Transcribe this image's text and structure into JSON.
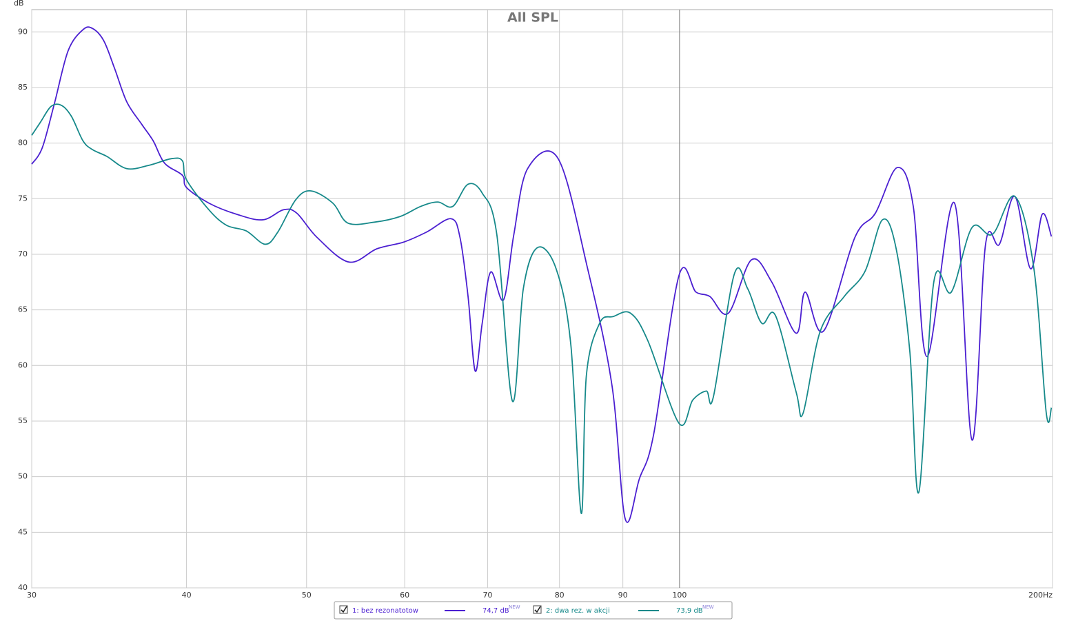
{
  "chart_data": {
    "type": "line",
    "title": "All SPL",
    "y_label": "dB",
    "xscale": "log",
    "grid": true,
    "xlim": [
      30,
      200
    ],
    "ylim": [
      40,
      92
    ],
    "xticks": [
      30,
      40,
      50,
      60,
      70,
      80,
      90,
      100,
      {
        "value": 200,
        "label": "200Hz"
      }
    ],
    "yticks": [
      40,
      45,
      50,
      55,
      60,
      65,
      70,
      75,
      80,
      85,
      90
    ],
    "series": [
      {
        "name": "1: bez rezonatotow",
        "color": "#4b1fd1",
        "level": "74,7 dB",
        "level_tag": "NEW",
        "x": [
          30,
          30.6,
          31.3,
          32.1,
          33.0,
          33.6,
          34.3,
          35.0,
          35.8,
          36.8,
          37.6,
          38.4,
          39.7,
          40.0,
          41.7,
          43.9,
          46.1,
          47.9,
          49.1,
          51.0,
          54.1,
          57.0,
          59.9,
          62.5,
          65.4,
          66.5,
          67.5,
          68.4,
          69.3,
          70.4,
          72.1,
          73.5,
          75.4,
          79.8,
          84.3,
          88.2,
          90.4,
          92.8,
          95.3,
          99.9,
          103.1,
          105.8,
          109.5,
          114.3,
          118.7,
          124.2,
          126.3,
          130.7,
          138.5,
          143.9,
          149.9,
          154.4,
          158.4,
          166.7,
          172.2,
          176.6,
          181.2,
          186.5,
          192.0,
          196.2,
          199.6
        ],
        "values": [
          78.1,
          79.6,
          83.6,
          88.3,
          90.2,
          90.3,
          89.2,
          86.7,
          83.7,
          81.7,
          80.2,
          78.2,
          77.1,
          76.0,
          74.6,
          73.6,
          73.1,
          74.0,
          73.7,
          71.5,
          69.3,
          70.5,
          71.1,
          72.0,
          73.2,
          71.5,
          66.2,
          59.5,
          63.8,
          68.4,
          65.9,
          71.8,
          77.7,
          78.6,
          68.7,
          58.2,
          46.2,
          49.8,
          53.8,
          68.1,
          66.6,
          66.2,
          64.7,
          69.5,
          67.5,
          62.9,
          66.6,
          63.1,
          71.5,
          73.7,
          77.8,
          74.3,
          60.8,
          74.6,
          53.3,
          70.9,
          70.9,
          75.2,
          68.7,
          73.6,
          71.6
        ]
      },
      {
        "name": "2: dwa rez. w akcji",
        "color": "#16898a",
        "level": "73,9 dB",
        "level_tag": "NEW",
        "x": [
          30,
          30.5,
          31.1,
          31.7,
          32.3,
          33.0,
          33.6,
          34.5,
          35.8,
          37.3,
          38.9,
          39.7,
          40.0,
          41.7,
          43.1,
          44.7,
          46.3,
          47.4,
          49.0,
          50.4,
          52.5,
          54.0,
          56.8,
          59.5,
          61.8,
          63.8,
          65.6,
          67.5,
          69.3,
          71.2,
          73.3,
          74.8,
          76.8,
          79.5,
          81.7,
          83.3,
          84.1,
          86.2,
          88.4,
          91.3,
          94.3,
          99.9,
          102.5,
          105.1,
          106.5,
          110.7,
          113.5,
          116.5,
          119.5,
          124.2,
          125.8,
          129.9,
          135.8,
          141.2,
          145.8,
          149.5,
          153.4,
          156.0,
          160.4,
          165.7,
          172.2,
          178.9,
          186.5,
          193.2,
          197.7,
          199.6
        ],
        "values": [
          80.7,
          81.9,
          83.3,
          83.4,
          82.4,
          80.2,
          79.4,
          78.8,
          77.7,
          78.0,
          78.6,
          78.4,
          76.7,
          74.0,
          72.6,
          72.1,
          70.9,
          72.0,
          74.9,
          75.7,
          74.6,
          72.8,
          72.9,
          73.4,
          74.3,
          74.7,
          74.3,
          76.3,
          75.5,
          71.8,
          56.8,
          66.9,
          70.6,
          68.7,
          61.9,
          46.7,
          59.1,
          63.8,
          64.4,
          64.7,
          62.2,
          54.8,
          56.9,
          57.7,
          57.2,
          68.2,
          66.9,
          63.8,
          64.5,
          57.6,
          55.7,
          63.1,
          66.2,
          68.5,
          73.1,
          70.6,
          61.3,
          48.6,
          67.5,
          66.6,
          72.4,
          71.8,
          75.2,
          68.7,
          55.7,
          56.2
        ]
      }
    ]
  }
}
